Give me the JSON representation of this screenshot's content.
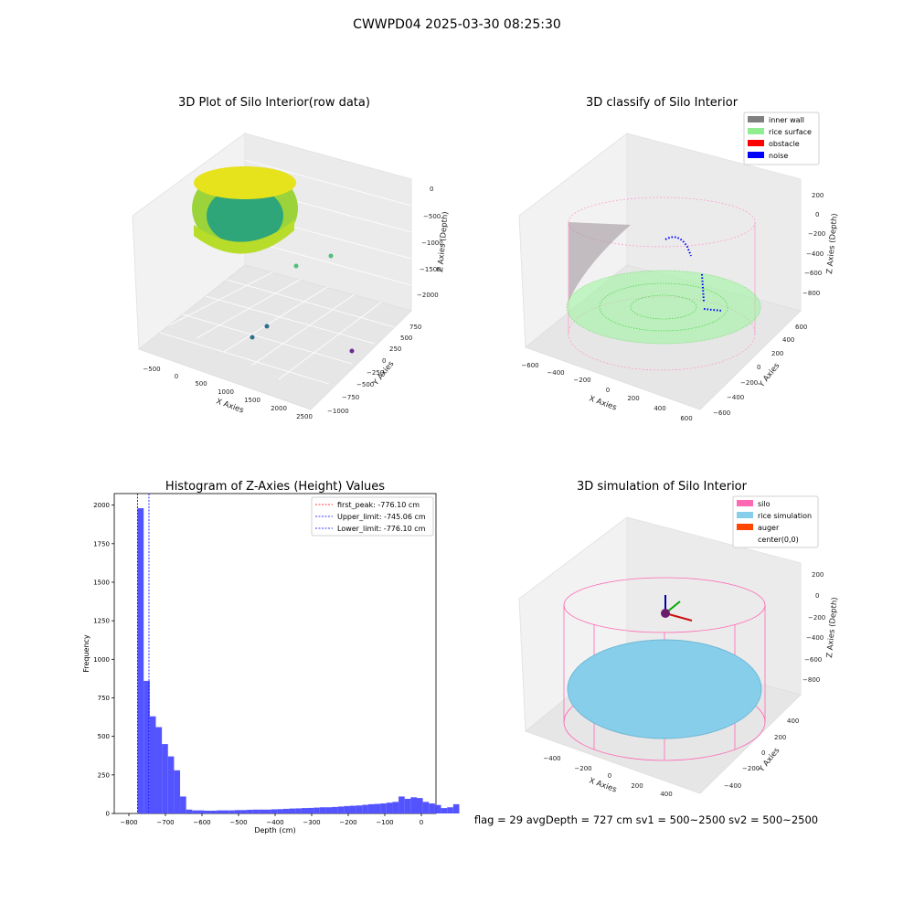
{
  "suptitle": "CWWPD04 2025-03-30 08:25:30",
  "footer": "flag = 29  avgDepth = 727 cm  sv1 = 500~2500  sv2 = 500~2500",
  "colors": {
    "inner_wall": "#808080",
    "rice_surface": "#90ee90",
    "obstacle": "#ff0000",
    "noise": "#0000ff",
    "silo": "#ff69b4",
    "rice_simulation": "#87ceeb",
    "auger": "#ff4500",
    "hist_bar": "#4b4bff"
  },
  "chart_data": [
    {
      "type": "scatter",
      "projection": "3d",
      "title": "3D Plot of Silo Interior(row data)",
      "xlabel": "X Axies",
      "ylabel": "Y Axies",
      "zlabel": "Z Axies (Depth)",
      "xticks": [
        "−500",
        "0",
        "500",
        "1000",
        "1500",
        "2000",
        "2500"
      ],
      "yticks": [
        "−1000",
        "−750",
        "−500",
        "−250",
        "0",
        "250",
        "500",
        "750"
      ],
      "zticks": [
        "−2000",
        "−1500",
        "−1000",
        "−500",
        "0"
      ],
      "colormap": "viridis"
    },
    {
      "type": "scatter",
      "projection": "3d",
      "title": "3D classify of Silo Interior",
      "xlabel": "X Axies",
      "ylabel": "Y Axies",
      "zlabel": "Z Axies (Depth)",
      "xticks": [
        "−600",
        "−400",
        "−200",
        "0",
        "200",
        "400",
        "600"
      ],
      "yticks": [
        "−600",
        "−400",
        "−200",
        "0",
        "200",
        "400",
        "600"
      ],
      "zticks": [
        "−800",
        "−600",
        "−400",
        "−200",
        "0",
        "200"
      ],
      "legend": {
        "position": "top-right",
        "entries": [
          "inner wall",
          "rice surface",
          "obstacle",
          "noise"
        ]
      }
    },
    {
      "type": "bar",
      "title": "Histogram of Z-Axies (Height) Values",
      "xlabel": "Depth (cm)",
      "ylabel": "Frequency",
      "xlim": [
        -840,
        40
      ],
      "ylim": [
        0,
        2075
      ],
      "xticks": [
        -800,
        -700,
        -600,
        -500,
        -400,
        -300,
        -200,
        -100,
        0
      ],
      "yticks": [
        0,
        250,
        500,
        750,
        1000,
        1250,
        1500,
        1750,
        2000
      ],
      "bin_width": 16.6,
      "bin_start": -776.1,
      "values": [
        1980,
        860,
        630,
        560,
        450,
        370,
        280,
        110,
        25,
        20,
        20,
        18,
        18,
        20,
        20,
        20,
        22,
        22,
        24,
        25,
        25,
        25,
        27,
        28,
        30,
        32,
        33,
        35,
        36,
        38,
        40,
        40,
        42,
        45,
        48,
        50,
        52,
        56,
        60,
        62,
        65,
        70,
        75,
        110,
        95,
        105,
        100,
        75,
        65,
        55,
        35,
        40,
        60
      ],
      "vlines": [
        {
          "label": "first_peak: -776.10 cm",
          "x": -776.1,
          "color": "#ff0000"
        },
        {
          "label": "Upper_limit: -745.06 cm",
          "x": -745.06,
          "color": "#0000ff"
        },
        {
          "label": "Lower_limit: -776.10 cm",
          "x": -776.1,
          "color": "#0000ff"
        }
      ],
      "legend": {
        "position": "top-right"
      }
    },
    {
      "type": "surface",
      "projection": "3d",
      "title": "3D simulation of Silo Interior",
      "xlabel": "X Axies",
      "ylabel": "Y Axies",
      "zlabel": "Z Axies (Depth)",
      "xticks": [
        "−400",
        "−200",
        "0",
        "200",
        "400"
      ],
      "yticks": [
        "−400",
        "−200",
        "0",
        "200",
        "400"
      ],
      "zticks": [
        "−800",
        "−600",
        "−400",
        "−200",
        "0",
        "200"
      ],
      "legend": {
        "position": "top-right",
        "entries": [
          "silo",
          "rice simulation",
          "auger",
          "center(0,0)"
        ]
      }
    }
  ]
}
